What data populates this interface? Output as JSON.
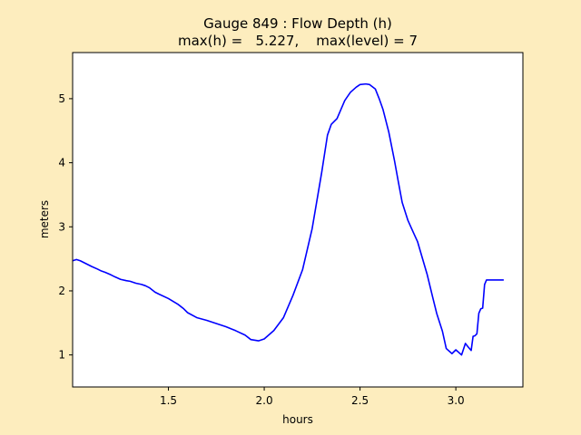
{
  "chart_data": {
    "type": "line",
    "title": "Gauge 849 : Flow Depth (h)",
    "subtitle": "max(h) =   5.227,    max(level) = 7",
    "xlabel": "hours",
    "ylabel": "meters",
    "xlim": [
      1.0,
      3.35
    ],
    "ylim": [
      0.5,
      5.72
    ],
    "xticks": [
      1.5,
      2.0,
      2.5,
      3.0
    ],
    "xtick_labels": [
      "1.5",
      "2.0",
      "2.5",
      "3.0"
    ],
    "yticks": [
      1,
      2,
      3,
      4,
      5
    ],
    "ytick_labels": [
      "1",
      "2",
      "3",
      "4",
      "5"
    ],
    "grid": false,
    "colors": {
      "figure_bg": "#fdedbe",
      "axes_bg": "#ffffff",
      "line": "#0000ff"
    },
    "series": [
      {
        "color": "#0000ff",
        "x": [
          1.0,
          1.02,
          1.04,
          1.06,
          1.08,
          1.1,
          1.13,
          1.15,
          1.17,
          1.2,
          1.22,
          1.25,
          1.28,
          1.3,
          1.33,
          1.36,
          1.38,
          1.4,
          1.43,
          1.45,
          1.5,
          1.55,
          1.58,
          1.6,
          1.65,
          1.7,
          1.75,
          1.8,
          1.85,
          1.9,
          1.93,
          1.97,
          2.0,
          2.05,
          2.1,
          2.15,
          2.2,
          2.25,
          2.3,
          2.33,
          2.35,
          2.38,
          2.4,
          2.42,
          2.45,
          2.48,
          2.5,
          2.53,
          2.55,
          2.58,
          2.6,
          2.62,
          2.65,
          2.68,
          2.7,
          2.72,
          2.75,
          2.78,
          2.8,
          2.85,
          2.88,
          2.9,
          2.93,
          2.95,
          2.98,
          3.0,
          3.03,
          3.05,
          3.06,
          3.08,
          3.09,
          3.1,
          3.11,
          3.12,
          3.13,
          3.14,
          3.15,
          3.16,
          3.17,
          3.18,
          3.19,
          3.2,
          3.21,
          3.22,
          3.23,
          3.24,
          3.25
        ],
        "y": [
          2.47,
          2.49,
          2.47,
          2.44,
          2.41,
          2.38,
          2.34,
          2.31,
          2.29,
          2.25,
          2.22,
          2.18,
          2.16,
          2.15,
          2.12,
          2.1,
          2.08,
          2.05,
          1.98,
          1.95,
          1.88,
          1.79,
          1.72,
          1.66,
          1.58,
          1.54,
          1.49,
          1.44,
          1.38,
          1.31,
          1.24,
          1.22,
          1.25,
          1.38,
          1.58,
          1.93,
          2.33,
          2.97,
          3.85,
          4.43,
          4.6,
          4.69,
          4.83,
          4.97,
          5.1,
          5.18,
          5.22,
          5.23,
          5.22,
          5.15,
          5.0,
          4.83,
          4.48,
          4.03,
          3.7,
          3.38,
          3.1,
          2.9,
          2.77,
          2.26,
          1.89,
          1.65,
          1.37,
          1.1,
          1.02,
          1.08,
          1.0,
          1.18,
          1.14,
          1.07,
          1.29,
          1.3,
          1.33,
          1.65,
          1.72,
          1.73,
          2.1,
          2.17,
          2.17,
          2.17,
          2.17,
          2.17,
          2.17,
          2.17,
          2.17,
          2.17,
          2.17
        ]
      }
    ]
  }
}
